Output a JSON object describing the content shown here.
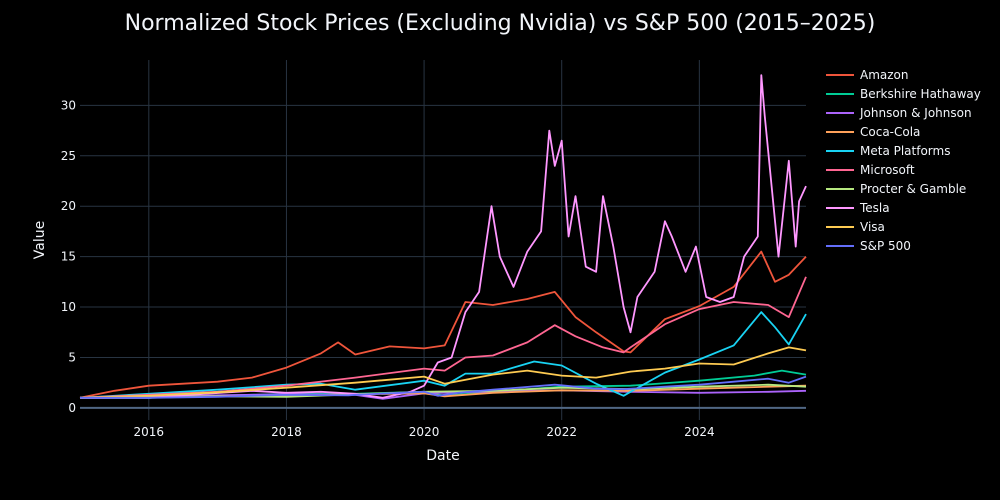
{
  "chart_data": {
    "type": "line",
    "title": "Normalized Stock Prices (Excluding Nvidia) vs S&P 500 (2015–2025)",
    "xlabel": "Date",
    "ylabel": "Value",
    "x_ticks": [
      "2016",
      "2018",
      "2020",
      "2022",
      "2024"
    ],
    "y_ticks": [
      0,
      5,
      10,
      15,
      20,
      25,
      30
    ],
    "xlim": [
      2015.0,
      2025.55
    ],
    "ylim": [
      -1.2,
      34.5
    ],
    "grid": true,
    "legend_position": "right",
    "series": [
      {
        "name": "Amazon",
        "color": "#ef553b",
        "x": [
          2015.0,
          2015.5,
          2016.0,
          2016.5,
          2017.0,
          2017.5,
          2018.0,
          2018.5,
          2018.75,
          2019.0,
          2019.5,
          2020.0,
          2020.3,
          2020.6,
          2021.0,
          2021.5,
          2021.9,
          2022.2,
          2022.5,
          2022.9,
          2023.0,
          2023.5,
          2024.0,
          2024.5,
          2024.9,
          2025.1,
          2025.3,
          2025.55
        ],
        "y": [
          1,
          1.7,
          2.2,
          2.4,
          2.6,
          3.0,
          4.0,
          5.4,
          6.5,
          5.3,
          6.1,
          5.9,
          6.2,
          10.5,
          10.2,
          10.8,
          11.5,
          9.0,
          7.5,
          5.6,
          5.5,
          8.8,
          10.1,
          12.0,
          15.5,
          12.5,
          13.2,
          15.0
        ]
      },
      {
        "name": "Berkshire Hathaway",
        "color": "#00cc96",
        "x": [
          2015.0,
          2016.0,
          2017.0,
          2018.0,
          2019.0,
          2020.0,
          2020.3,
          2021.0,
          2022.0,
          2023.0,
          2024.0,
          2024.8,
          2025.2,
          2025.55
        ],
        "y": [
          1,
          1.0,
          1.2,
          1.4,
          1.4,
          1.6,
          1.2,
          1.6,
          2.1,
          2.2,
          2.7,
          3.2,
          3.7,
          3.3
        ]
      },
      {
        "name": "Johnson & Johnson",
        "color": "#ab63fa",
        "x": [
          2015.0,
          2016.0,
          2017.0,
          2018.0,
          2019.0,
          2019.4,
          2020.0,
          2021.0,
          2022.0,
          2023.0,
          2024.0,
          2025.0,
          2025.55
        ],
        "y": [
          1,
          1.05,
          1.25,
          1.35,
          1.3,
          0.9,
          1.45,
          1.65,
          1.75,
          1.6,
          1.5,
          1.6,
          1.7
        ]
      },
      {
        "name": "Coca-Cola",
        "color": "#ffa15a",
        "x": [
          2015.0,
          2016.0,
          2017.0,
          2018.0,
          2019.0,
          2020.0,
          2020.3,
          2021.0,
          2022.0,
          2023.0,
          2024.0,
          2025.0,
          2025.55
        ],
        "y": [
          1,
          1.05,
          1.15,
          1.2,
          1.35,
          1.45,
          1.15,
          1.5,
          1.75,
          1.7,
          1.9,
          2.1,
          2.2
        ]
      },
      {
        "name": "Meta Platforms",
        "color": "#19d3f3",
        "x": [
          2015.0,
          2016.0,
          2017.0,
          2018.0,
          2018.5,
          2019.0,
          2020.0,
          2020.3,
          2020.6,
          2021.0,
          2021.6,
          2022.0,
          2022.5,
          2022.9,
          2023.0,
          2023.5,
          2024.0,
          2024.5,
          2024.9,
          2025.1,
          2025.3,
          2025.55
        ],
        "y": [
          1,
          1.4,
          1.8,
          2.3,
          2.4,
          1.8,
          2.7,
          2.2,
          3.4,
          3.4,
          4.6,
          4.2,
          2.4,
          1.2,
          1.6,
          3.5,
          4.8,
          6.2,
          9.5,
          8.0,
          6.3,
          9.3
        ]
      },
      {
        "name": "Microsoft",
        "color": "#ff6692",
        "x": [
          2015.0,
          2016.0,
          2017.0,
          2018.0,
          2019.0,
          2020.0,
          2020.3,
          2020.6,
          2021.0,
          2021.5,
          2021.9,
          2022.2,
          2022.6,
          2022.9,
          2023.0,
          2023.5,
          2024.0,
          2024.5,
          2025.0,
          2025.3,
          2025.55
        ],
        "y": [
          1,
          1.3,
          1.6,
          2.2,
          3.0,
          3.9,
          3.7,
          5.0,
          5.2,
          6.5,
          8.2,
          7.1,
          6.0,
          5.5,
          6.0,
          8.3,
          9.8,
          10.5,
          10.2,
          9.0,
          13.0
        ]
      },
      {
        "name": "Procter & Gamble",
        "color": "#b6e880",
        "x": [
          2015.0,
          2016.0,
          2017.0,
          2018.0,
          2019.0,
          2020.0,
          2021.0,
          2022.0,
          2023.0,
          2024.0,
          2025.0,
          2025.55
        ],
        "y": [
          1,
          1.05,
          1.15,
          1.1,
          1.35,
          1.6,
          1.7,
          2.0,
          1.85,
          2.1,
          2.3,
          2.1
        ]
      },
      {
        "name": "Tesla",
        "color": "#ff97ff",
        "x": [
          2015.0,
          2016.0,
          2016.8,
          2017.5,
          2018.0,
          2018.5,
          2019.0,
          2019.4,
          2019.8,
          2020.0,
          2020.2,
          2020.4,
          2020.6,
          2020.8,
          2020.98,
          2021.1,
          2021.3,
          2021.5,
          2021.7,
          2021.82,
          2021.9,
          2022.0,
          2022.1,
          2022.2,
          2022.35,
          2022.5,
          2022.6,
          2022.75,
          2022.9,
          2023.0,
          2023.1,
          2023.2,
          2023.35,
          2023.5,
          2023.6,
          2023.8,
          2023.95,
          2024.1,
          2024.3,
          2024.5,
          2024.65,
          2024.85,
          2024.9,
          2024.95,
          2025.05,
          2025.15,
          2025.3,
          2025.4,
          2025.45,
          2025.55
        ],
        "y": [
          1,
          1.0,
          1.4,
          1.7,
          1.5,
          1.6,
          1.4,
          1.0,
          1.6,
          2.2,
          4.5,
          5.0,
          9.5,
          11.5,
          20.0,
          15.0,
          12.0,
          15.5,
          17.5,
          27.5,
          24.0,
          26.5,
          17.0,
          21.0,
          14.0,
          13.5,
          21.0,
          16.0,
          10.0,
          7.5,
          11.0,
          12.0,
          13.5,
          18.5,
          17.0,
          13.5,
          16.0,
          11.0,
          10.5,
          11.0,
          15.0,
          17.0,
          33.0,
          29.0,
          22.0,
          15.0,
          24.5,
          16.0,
          20.5,
          22.0
        ]
      },
      {
        "name": "Visa",
        "color": "#fecb52",
        "x": [
          2015.0,
          2016.0,
          2017.0,
          2018.0,
          2019.0,
          2020.0,
          2020.3,
          2021.0,
          2021.5,
          2022.0,
          2022.5,
          2023.0,
          2023.5,
          2024.0,
          2024.5,
          2025.0,
          2025.3,
          2025.55
        ],
        "y": [
          1,
          1.2,
          1.55,
          2.0,
          2.5,
          3.1,
          2.4,
          3.3,
          3.7,
          3.2,
          3.0,
          3.6,
          3.9,
          4.4,
          4.3,
          5.4,
          6.0,
          5.7
        ]
      },
      {
        "name": "S&P 500",
        "color": "#636efa",
        "x": [
          2015.0,
          2016.0,
          2017.0,
          2018.0,
          2018.9,
          2019.0,
          2020.0,
          2020.2,
          2020.5,
          2021.0,
          2021.9,
          2022.5,
          2022.9,
          2023.5,
          2024.0,
          2024.5,
          2025.0,
          2025.3,
          2025.55
        ],
        "y": [
          1,
          1.0,
          1.1,
          1.3,
          1.25,
          1.3,
          1.6,
          1.2,
          1.5,
          1.8,
          2.3,
          1.9,
          1.85,
          2.1,
          2.3,
          2.6,
          2.9,
          2.5,
          3.1
        ]
      }
    ]
  }
}
